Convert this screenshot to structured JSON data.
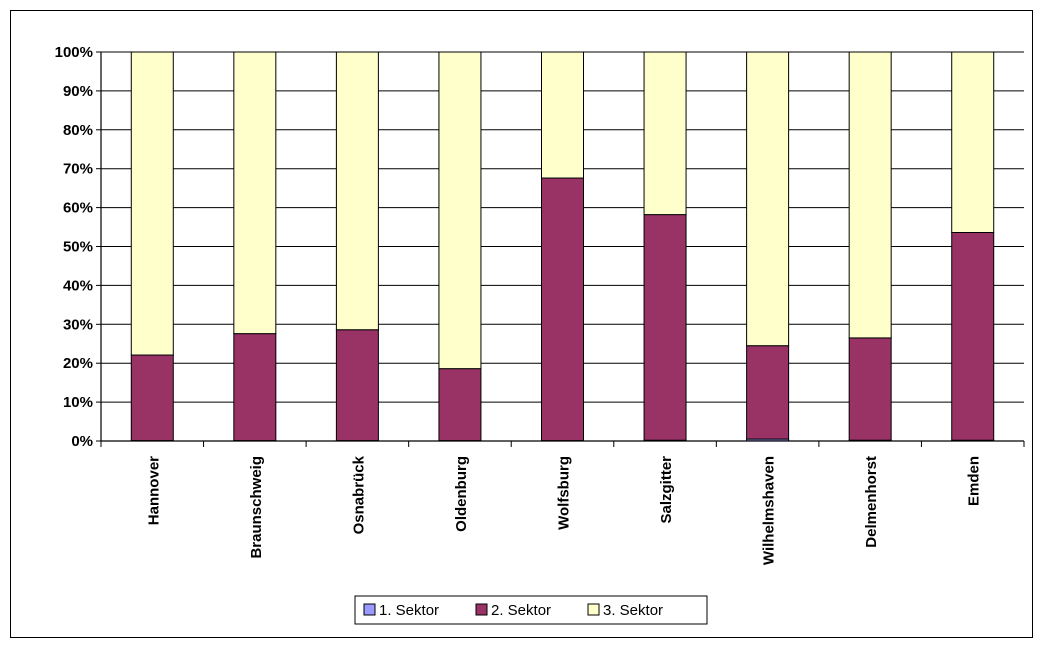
{
  "chart_data": {
    "type": "bar",
    "stacked": true,
    "percent": true,
    "title": "",
    "xlabel": "",
    "ylabel": "",
    "ylim": [
      0,
      100
    ],
    "yticks": [
      "0%",
      "10%",
      "20%",
      "30%",
      "40%",
      "50%",
      "60%",
      "70%",
      "80%",
      "90%",
      "100%"
    ],
    "grid": true,
    "legend_position": "bottom",
    "categories": [
      "Hannover",
      "Braunschweig",
      "Osnabrück",
      "Oldenburg",
      "Wolfsburg",
      "Salzgitter",
      "Wilhelmshaven",
      "Delmenhorst",
      "Emden"
    ],
    "series": [
      {
        "name": "1. Sektor",
        "color": "#9999ff",
        "values": [
          0.1,
          0.1,
          0.1,
          0.1,
          0.1,
          0.2,
          0.5,
          0.2,
          0.2
        ]
      },
      {
        "name": "2. Sektor",
        "color": "#993366",
        "values": [
          22.0,
          27.5,
          28.5,
          18.5,
          67.5,
          58.0,
          24.0,
          26.3,
          53.4
        ]
      },
      {
        "name": "3. Sektor",
        "color": "#ffffcc",
        "values": [
          77.9,
          72.4,
          71.4,
          81.4,
          32.4,
          41.8,
          75.5,
          73.5,
          46.4
        ]
      }
    ]
  }
}
